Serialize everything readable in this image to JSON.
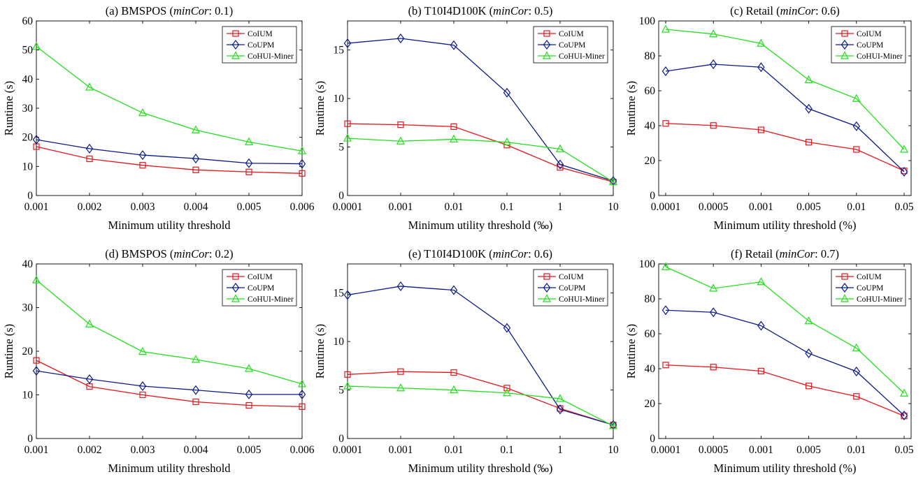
{
  "colors": {
    "CoIUM": "#e8141a",
    "CoUPM": "#0b1a8c",
    "CoHUI-Miner": "#22e01c"
  },
  "chart_data": [
    {
      "type": "line",
      "title_prefix": "(a) BMSPOS (",
      "title_param": "minCor",
      "title_suffix": ": 0.1)",
      "xlabel": "Minimum utility threshold",
      "ylabel": "Runtime (s)",
      "categories": [
        "0.001",
        "0.002",
        "0.003",
        "0.004",
        "0.005",
        "0.006"
      ],
      "ylim": [
        0,
        60
      ],
      "yticks": [
        0,
        10,
        20,
        30,
        40,
        50,
        60
      ],
      "ytick_labels": [
        "0",
        "10",
        "20",
        "30",
        "40",
        "50",
        "60"
      ],
      "legend": "top-right",
      "series": [
        {
          "name": "CoIUM",
          "marker": "square",
          "values": [
            16.8,
            12.6,
            10.4,
            8.8,
            8.1,
            7.6
          ]
        },
        {
          "name": "CoUPM",
          "marker": "diamond",
          "values": [
            19.2,
            16.1,
            13.9,
            12.7,
            11.1,
            10.9
          ]
        },
        {
          "name": "CoHUI-Miner",
          "marker": "triangle",
          "values": [
            51.2,
            37.2,
            28.4,
            22.5,
            18.4,
            15.3
          ]
        }
      ]
    },
    {
      "type": "line",
      "title_prefix": "(b) T10I4D100K (",
      "title_param": "minCor",
      "title_suffix": ": 0.5)",
      "xlabel": "Minimum utility threshold (‰)",
      "ylabel": "Runtime (s)",
      "categories": [
        "0.0001",
        "0.001",
        "0.01",
        "0.1",
        "1",
        "10"
      ],
      "ylim": [
        0,
        18
      ],
      "yticks": [
        0,
        5,
        10,
        15
      ],
      "ytick_labels": [
        "0",
        "5",
        "10",
        "15"
      ],
      "legend": "top-right",
      "series": [
        {
          "name": "CoIUM",
          "marker": "square",
          "values": [
            7.4,
            7.3,
            7.1,
            5.2,
            2.9,
            1.4
          ]
        },
        {
          "name": "CoUPM",
          "marker": "diamond",
          "values": [
            15.7,
            16.2,
            15.5,
            10.6,
            3.2,
            1.5
          ]
        },
        {
          "name": "CoHUI-Miner",
          "marker": "triangle",
          "values": [
            5.9,
            5.6,
            5.8,
            5.5,
            4.8,
            1.4
          ]
        }
      ]
    },
    {
      "type": "line",
      "title_prefix": "(c) Retail (",
      "title_param": "minCor",
      "title_suffix": ": 0.6)",
      "xlabel": "Minimum utility threshold (%)",
      "ylabel": "Runtime (s)",
      "categories": [
        "0.0001",
        "0.0005",
        "0.001",
        "0.005",
        "0.01",
        "0.05"
      ],
      "ylim": [
        0,
        100
      ],
      "yticks": [
        0,
        20,
        40,
        60,
        80,
        100
      ],
      "ytick_labels": [
        "0",
        "20",
        "40",
        "60",
        "80",
        "100"
      ],
      "legend": "top-right",
      "series": [
        {
          "name": "CoIUM",
          "marker": "square",
          "values": [
            41.3,
            40.1,
            37.6,
            30.5,
            26.4,
            14.1
          ]
        },
        {
          "name": "CoUPM",
          "marker": "diamond",
          "values": [
            71.2,
            75.2,
            73.5,
            49.7,
            39.7,
            13.6
          ]
        },
        {
          "name": "CoHUI-Miner",
          "marker": "triangle",
          "values": [
            95.2,
            92.5,
            87.1,
            66.2,
            55.5,
            26.4
          ]
        }
      ]
    },
    {
      "type": "line",
      "title_prefix": "(d) BMSPOS (",
      "title_param": "minCor",
      "title_suffix": ": 0.2)",
      "xlabel": "Minimum utility threshold",
      "ylabel": "Runtime (s)",
      "categories": [
        "0.001",
        "0.002",
        "0.003",
        "0.004",
        "0.005",
        "0.006"
      ],
      "ylim": [
        0,
        40
      ],
      "yticks": [
        0,
        10,
        20,
        30,
        40
      ],
      "ytick_labels": [
        "0",
        "10",
        "20",
        "30",
        "40"
      ],
      "legend": "top-right",
      "series": [
        {
          "name": "CoIUM",
          "marker": "square",
          "values": [
            17.9,
            11.9,
            10.0,
            8.4,
            7.6,
            7.3
          ]
        },
        {
          "name": "CoUPM",
          "marker": "diamond",
          "values": [
            15.5,
            13.6,
            12.0,
            11.1,
            10.1,
            10.1
          ]
        },
        {
          "name": "CoHUI-Miner",
          "marker": "triangle",
          "values": [
            36.3,
            26.2,
            19.9,
            18.1,
            16.0,
            12.5
          ]
        }
      ]
    },
    {
      "type": "line",
      "title_prefix": "(e) T10I4D100K (",
      "title_param": "minCor",
      "title_suffix": ": 0.6)",
      "xlabel": "Minimum utility threshold (‰)",
      "ylabel": "Runtime (s)",
      "categories": [
        "0.0001",
        "0.001",
        "0.01",
        "0.1",
        "1",
        "10"
      ],
      "ylim": [
        0,
        18
      ],
      "yticks": [
        0,
        5,
        10,
        15
      ],
      "ytick_labels": [
        "0",
        "5",
        "10",
        "15"
      ],
      "legend": "top-right",
      "series": [
        {
          "name": "CoIUM",
          "marker": "square",
          "values": [
            6.6,
            6.9,
            6.8,
            5.2,
            3.1,
            1.4
          ]
        },
        {
          "name": "CoUPM",
          "marker": "diamond",
          "values": [
            14.8,
            15.7,
            15.3,
            11.4,
            3.0,
            1.4
          ]
        },
        {
          "name": "CoHUI-Miner",
          "marker": "triangle",
          "values": [
            5.4,
            5.2,
            5.0,
            4.7,
            4.1,
            1.3
          ]
        }
      ]
    },
    {
      "type": "line",
      "title_prefix": "(f) Retail (",
      "title_param": "minCor",
      "title_suffix": ": 0.7)",
      "xlabel": "Minimum utility threshold (%)",
      "ylabel": "Runtime (s)",
      "categories": [
        "0.0001",
        "0.0005",
        "0.001",
        "0.005",
        "0.01",
        "0.05"
      ],
      "ylim": [
        0,
        100
      ],
      "yticks": [
        0,
        20,
        40,
        60,
        80,
        100
      ],
      "ytick_labels": [
        "0",
        "20",
        "40",
        "60",
        "80",
        "100"
      ],
      "legend": "top-right",
      "series": [
        {
          "name": "CoIUM",
          "marker": "square",
          "values": [
            42.1,
            40.9,
            38.6,
            30.1,
            24.1,
            12.9
          ]
        },
        {
          "name": "CoUPM",
          "marker": "diamond",
          "values": [
            73.5,
            72.3,
            64.6,
            48.8,
            38.4,
            13.2
          ]
        },
        {
          "name": "CoHUI-Miner",
          "marker": "triangle",
          "values": [
            98.3,
            86.0,
            89.7,
            67.3,
            51.8,
            25.9
          ]
        }
      ]
    }
  ]
}
